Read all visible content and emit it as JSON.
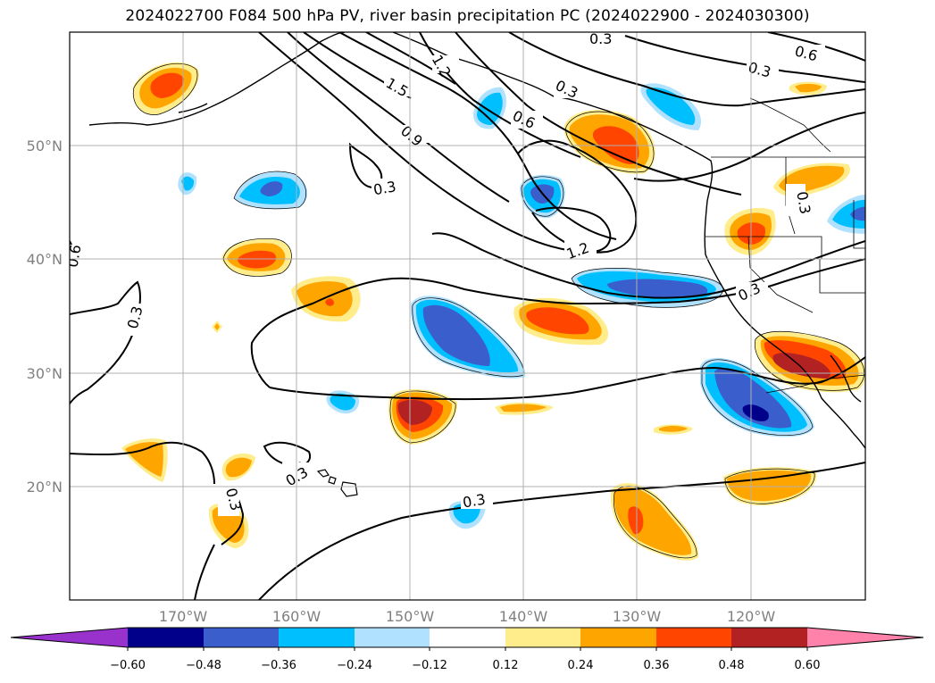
{
  "title": "2024022700 F084 500 hPa PV, river basin precipitation PC (2024022900 - 2024030300)",
  "lat_ticks": [
    "50°N",
    "40°N",
    "30°N",
    "20°N"
  ],
  "lon_ticks": [
    "170°W",
    "160°W",
    "150°W",
    "140°W",
    "130°W",
    "120°W"
  ],
  "colorbar": {
    "colors": [
      "#9932cc",
      "#00008b",
      "#3a5fcd",
      "#00bfff",
      "#b0e2ff",
      "#ffffff",
      "#ffec8b",
      "#ffa500",
      "#ff4500",
      "#b22222",
      "#ff82ab"
    ],
    "tick_labels": [
      "−0.60",
      "−0.48",
      "−0.36",
      "−0.24",
      "−0.12",
      "0.12",
      "0.24",
      "0.36",
      "0.48",
      "0.60"
    ]
  },
  "contour_labels": [
    "0.3",
    "0.6",
    "0.9",
    "1.2",
    "1.5"
  ],
  "pv_contour_labels_shown": [
    "0.3",
    "0.6",
    "0.3",
    "0.3",
    "0.3",
    "1.2",
    "1.5",
    "0.9",
    "0.3",
    "0.6",
    "1.2",
    "0.3",
    "0.3",
    "0.3",
    "0.3",
    "0.3",
    "0.3"
  ]
}
